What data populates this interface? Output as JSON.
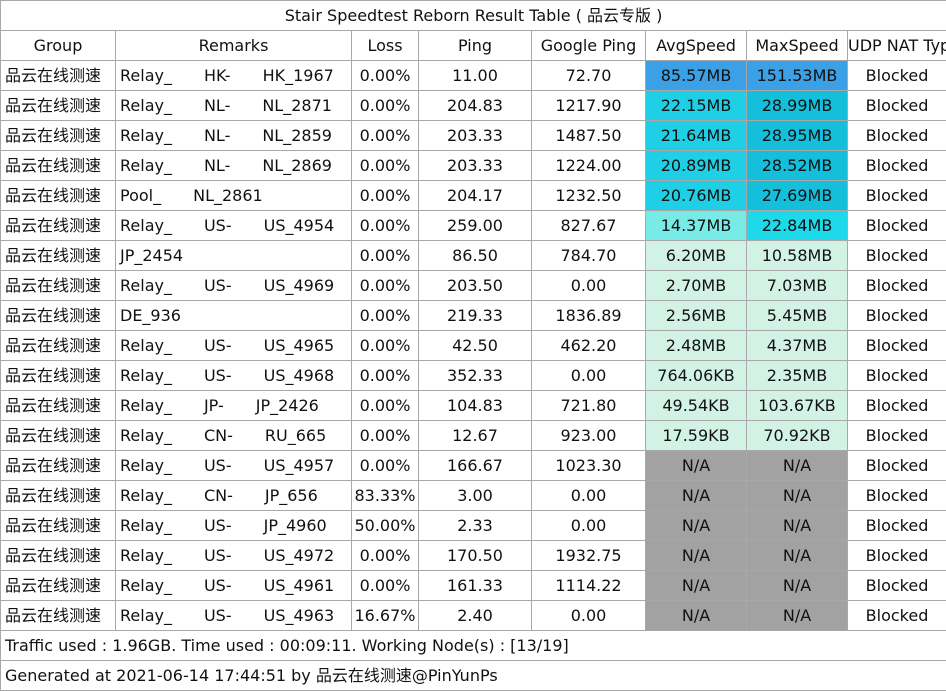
{
  "title": "Stair Speedtest Reborn Result Table ( 品云专版 )",
  "headers": [
    "Group",
    "Remarks",
    "Loss",
    "Ping",
    "Google Ping",
    "AvgSpeed",
    "MaxSpeed",
    "UDP NAT Type"
  ],
  "rows": [
    {
      "group": "品云在线测速",
      "remarks": "Relay_　　HK-　　HK_1967",
      "loss": "0.00%",
      "ping": "11.00",
      "gping": "72.70",
      "avg": "85.57MB",
      "max": "151.53MB",
      "nat": "Blocked",
      "avg_color": "#3ca0e6",
      "max_color": "#3ca0e6"
    },
    {
      "group": "品云在线测速",
      "remarks": "Relay_　　NL-　　NL_2871",
      "loss": "0.00%",
      "ping": "204.83",
      "gping": "1217.90",
      "avg": "22.15MB",
      "max": "28.99MB",
      "nat": "Blocked",
      "avg_color": "#1ecfe6",
      "max_color": "#14bfdc"
    },
    {
      "group": "品云在线测速",
      "remarks": "Relay_　　NL-　　NL_2859",
      "loss": "0.00%",
      "ping": "203.33",
      "gping": "1487.50",
      "avg": "21.64MB",
      "max": "28.95MB",
      "nat": "Blocked",
      "avg_color": "#1ecfe6",
      "max_color": "#14bfdc"
    },
    {
      "group": "品云在线测速",
      "remarks": "Relay_　　NL-　　NL_2869",
      "loss": "0.00%",
      "ping": "203.33",
      "gping": "1224.00",
      "avg": "20.89MB",
      "max": "28.52MB",
      "nat": "Blocked",
      "avg_color": "#1ecfe6",
      "max_color": "#14bfdc"
    },
    {
      "group": "品云在线测速",
      "remarks": "Pool_　　NL_2861",
      "loss": "0.00%",
      "ping": "204.17",
      "gping": "1232.50",
      "avg": "20.76MB",
      "max": "27.69MB",
      "nat": "Blocked",
      "avg_color": "#1ecfe6",
      "max_color": "#14bfdc"
    },
    {
      "group": "品云在线测速",
      "remarks": "Relay_　　US-　　US_4954",
      "loss": "0.00%",
      "ping": "259.00",
      "gping": "827.67",
      "avg": "14.37MB",
      "max": "22.84MB",
      "nat": "Blocked",
      "avg_color": "#78ebe6",
      "max_color": "#1ed9ea"
    },
    {
      "group": "品云在线测速",
      "remarks": "JP_2454",
      "loss": "0.00%",
      "ping": "86.50",
      "gping": "784.70",
      "avg": "6.20MB",
      "max": "10.58MB",
      "nat": "Blocked",
      "avg_color": "#d2f2e6",
      "max_color": "#d2f2e6"
    },
    {
      "group": "品云在线测速",
      "remarks": "Relay_　　US-　　US_4969",
      "loss": "0.00%",
      "ping": "203.50",
      "gping": "0.00",
      "avg": "2.70MB",
      "max": "7.03MB",
      "nat": "Blocked",
      "avg_color": "#d2f2e6",
      "max_color": "#d2f2e6"
    },
    {
      "group": "品云在线测速",
      "remarks": "DE_936",
      "loss": "0.00%",
      "ping": "219.33",
      "gping": "1836.89",
      "avg": "2.56MB",
      "max": "5.45MB",
      "nat": "Blocked",
      "avg_color": "#d2f2e6",
      "max_color": "#d2f2e6"
    },
    {
      "group": "品云在线测速",
      "remarks": "Relay_　　US-　　US_4965",
      "loss": "0.00%",
      "ping": "42.50",
      "gping": "462.20",
      "avg": "2.48MB",
      "max": "4.37MB",
      "nat": "Blocked",
      "avg_color": "#d2f2e6",
      "max_color": "#d2f2e6"
    },
    {
      "group": "品云在线测速",
      "remarks": "Relay_　　US-　　US_4968",
      "loss": "0.00%",
      "ping": "352.33",
      "gping": "0.00",
      "avg": "764.06KB",
      "max": "2.35MB",
      "nat": "Blocked",
      "avg_color": "#d2f2e6",
      "max_color": "#d2f2e6"
    },
    {
      "group": "品云在线测速",
      "remarks": "Relay_　　JP-　　JP_2426",
      "loss": "0.00%",
      "ping": "104.83",
      "gping": "721.80",
      "avg": "49.54KB",
      "max": "103.67KB",
      "nat": "Blocked",
      "avg_color": "#d2f2e6",
      "max_color": "#d2f2e6"
    },
    {
      "group": "品云在线测速",
      "remarks": "Relay_　　CN-　　RU_665",
      "loss": "0.00%",
      "ping": "12.67",
      "gping": "923.00",
      "avg": "17.59KB",
      "max": "70.92KB",
      "nat": "Blocked",
      "avg_color": "#d2f2e6",
      "max_color": "#d2f2e6"
    },
    {
      "group": "品云在线测速",
      "remarks": "Relay_　　US-　　US_4957",
      "loss": "0.00%",
      "ping": "166.67",
      "gping": "1023.30",
      "avg": "N/A",
      "max": "N/A",
      "nat": "Blocked",
      "avg_color": "#a2a2a2",
      "max_color": "#a2a2a2"
    },
    {
      "group": "品云在线测速",
      "remarks": "Relay_　　CN-　　JP_656",
      "loss": "83.33%",
      "ping": "3.00",
      "gping": "0.00",
      "avg": "N/A",
      "max": "N/A",
      "nat": "Blocked",
      "avg_color": "#a2a2a2",
      "max_color": "#a2a2a2"
    },
    {
      "group": "品云在线测速",
      "remarks": "Relay_　　US-　　JP_4960",
      "loss": "50.00%",
      "ping": "2.33",
      "gping": "0.00",
      "avg": "N/A",
      "max": "N/A",
      "nat": "Blocked",
      "avg_color": "#a2a2a2",
      "max_color": "#a2a2a2"
    },
    {
      "group": "品云在线测速",
      "remarks": "Relay_　　US-　　US_4972",
      "loss": "0.00%",
      "ping": "170.50",
      "gping": "1932.75",
      "avg": "N/A",
      "max": "N/A",
      "nat": "Blocked",
      "avg_color": "#a2a2a2",
      "max_color": "#a2a2a2"
    },
    {
      "group": "品云在线测速",
      "remarks": "Relay_　　US-　　US_4961",
      "loss": "0.00%",
      "ping": "161.33",
      "gping": "1114.22",
      "avg": "N/A",
      "max": "N/A",
      "nat": "Blocked",
      "avg_color": "#a2a2a2",
      "max_color": "#a2a2a2"
    },
    {
      "group": "品云在线测速",
      "remarks": "Relay_　　US-　　US_4963",
      "loss": "16.67%",
      "ping": "2.40",
      "gping": "0.00",
      "avg": "N/A",
      "max": "N/A",
      "nat": "Blocked",
      "avg_color": "#a2a2a2",
      "max_color": "#a2a2a2"
    }
  ],
  "footer": {
    "traffic": "Traffic used : 1.96GB. Time used : 00:09:11. Working Node(s) : [13/19]",
    "generated": "Generated at 2021-06-14 17:44:51 by 品云在线测速@PinYunPs"
  }
}
